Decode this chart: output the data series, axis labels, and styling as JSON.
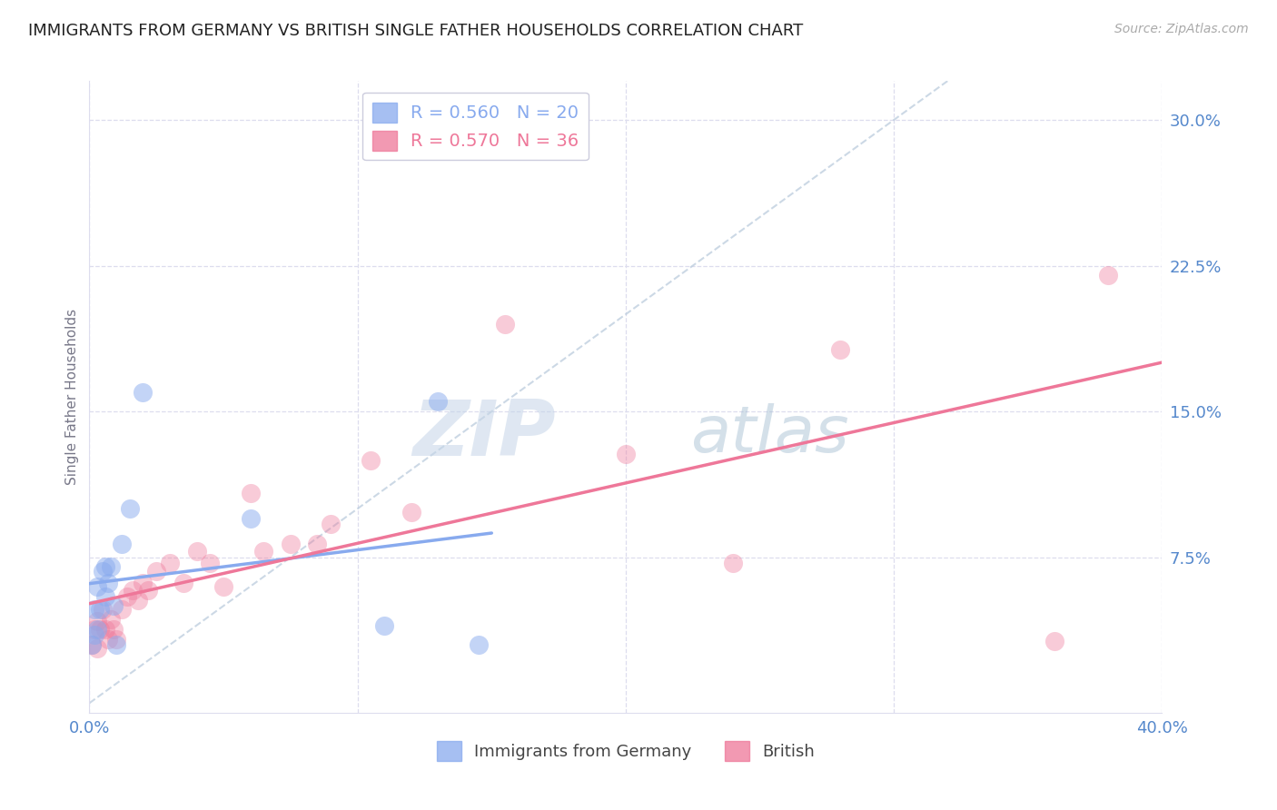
{
  "title": "IMMIGRANTS FROM GERMANY VS BRITISH SINGLE FATHER HOUSEHOLDS CORRELATION CHART",
  "source": "Source: ZipAtlas.com",
  "ylabel": "Single Father Households",
  "xlim": [
    0.0,
    0.4
  ],
  "ylim": [
    -0.005,
    0.32
  ],
  "title_color": "#222222",
  "title_fontsize": 13,
  "axis_color": "#5588cc",
  "legend_R1": "R = 0.560",
  "legend_N1": "N = 20",
  "legend_R2": "R = 0.570",
  "legend_N2": "N = 36",
  "blue_color": "#88aaee",
  "pink_color": "#ee7799",
  "watermark_zip": "ZIP",
  "watermark_atlas": "atlas",
  "watermark_color_zip": "#c5d5e8",
  "watermark_color_atlas": "#a0bbd0",
  "y_ticks_right": [
    0.075,
    0.15,
    0.225,
    0.3
  ],
  "y_tick_labels_right": [
    "7.5%",
    "15.0%",
    "22.5%",
    "30.0%"
  ],
  "x_ticks": [
    0.0,
    0.1,
    0.2,
    0.3,
    0.4
  ],
  "x_tick_labels": [
    "0.0%",
    "",
    "",
    "",
    "40.0%"
  ],
  "germany_x": [
    0.001,
    0.002,
    0.002,
    0.003,
    0.003,
    0.004,
    0.005,
    0.006,
    0.006,
    0.007,
    0.008,
    0.009,
    0.01,
    0.012,
    0.015,
    0.02,
    0.06,
    0.11,
    0.13,
    0.145
  ],
  "germany_y": [
    0.03,
    0.035,
    0.048,
    0.038,
    0.06,
    0.048,
    0.068,
    0.055,
    0.07,
    0.062,
    0.07,
    0.05,
    0.03,
    0.082,
    0.1,
    0.16,
    0.095,
    0.04,
    0.155,
    0.03
  ],
  "british_x": [
    0.001,
    0.002,
    0.003,
    0.003,
    0.004,
    0.005,
    0.006,
    0.007,
    0.008,
    0.009,
    0.01,
    0.012,
    0.014,
    0.016,
    0.018,
    0.02,
    0.022,
    0.025,
    0.03,
    0.035,
    0.04,
    0.045,
    0.05,
    0.06,
    0.065,
    0.075,
    0.085,
    0.09,
    0.105,
    0.12,
    0.155,
    0.2,
    0.24,
    0.28,
    0.36,
    0.38
  ],
  "british_y": [
    0.03,
    0.038,
    0.028,
    0.042,
    0.038,
    0.048,
    0.038,
    0.033,
    0.043,
    0.038,
    0.033,
    0.048,
    0.055,
    0.058,
    0.053,
    0.062,
    0.058,
    0.068,
    0.072,
    0.062,
    0.078,
    0.072,
    0.06,
    0.108,
    0.078,
    0.082,
    0.082,
    0.092,
    0.125,
    0.098,
    0.195,
    0.128,
    0.072,
    0.182,
    0.032,
    0.22
  ],
  "diag_line_color": "#bbccdd",
  "grid_color": "#ddddee",
  "spine_color": "#ddddee"
}
